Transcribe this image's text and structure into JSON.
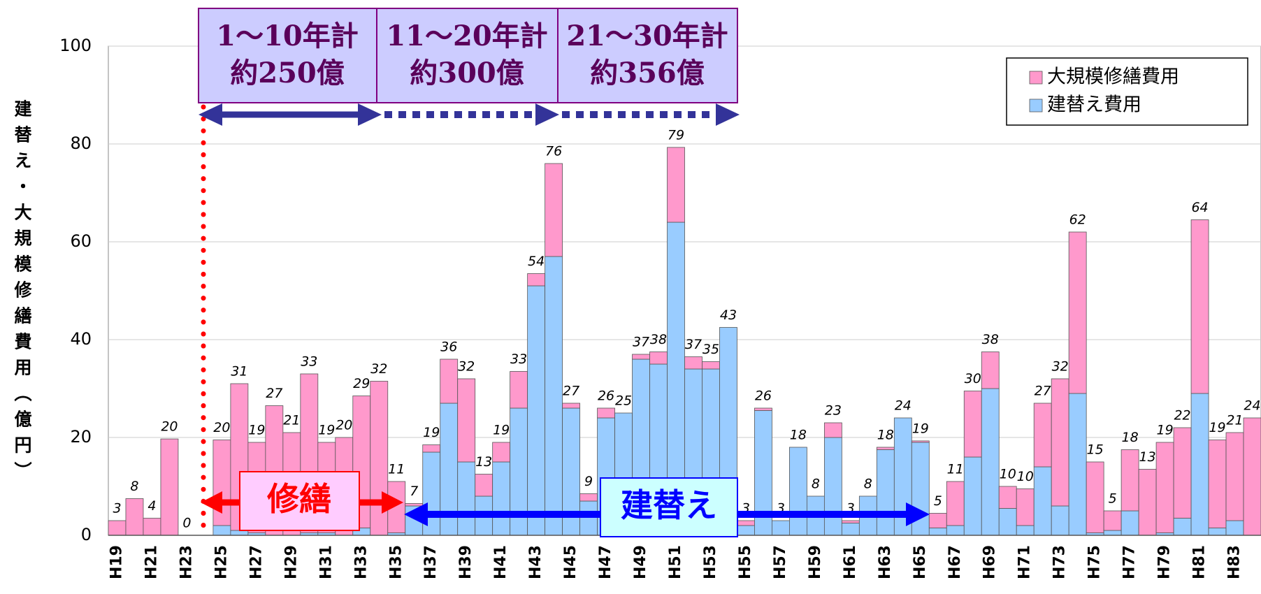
{
  "chart_data": {
    "type": "stacked_bar",
    "y_label": "建替え・大規模修繕費用（億円）",
    "categories": [
      "H19",
      null,
      "H21",
      null,
      "H23",
      null,
      "H25",
      null,
      "H27",
      null,
      "H29",
      null,
      "H31",
      null,
      "H33",
      null,
      "H35",
      null,
      "H37",
      null,
      "H39",
      null,
      "H41",
      null,
      "H43",
      null,
      "H45",
      null,
      "H47",
      null,
      "H49",
      null,
      "H51",
      null,
      "H53",
      null,
      "H55",
      null,
      "H57",
      null,
      "H59",
      null,
      "H61",
      null,
      "H63",
      null,
      "H65",
      null,
      "H67",
      null,
      "H69",
      null,
      "H71",
      null,
      "H73",
      null,
      "H75",
      null,
      "H77",
      null,
      "H79",
      null,
      "H81",
      null,
      "H83",
      null
    ],
    "series": [
      {
        "name": "建替え費用",
        "color": "#99ccff",
        "values": [
          0,
          0,
          0,
          0,
          0,
          0,
          2,
          1,
          0.5,
          0,
          0,
          0.5,
          0.5,
          0,
          1.5,
          0,
          0.5,
          6,
          17,
          27,
          15,
          8,
          15,
          26,
          51,
          57,
          26,
          7,
          24,
          25,
          36,
          35,
          64,
          34,
          34,
          42.5,
          2,
          25.5,
          3,
          18,
          8,
          20,
          2.5,
          8,
          17.5,
          24,
          19,
          1.5,
          2,
          16,
          30,
          5.5,
          2,
          14,
          6,
          29,
          0.5,
          1,
          5,
          0,
          0.5,
          3.5,
          29,
          1.5,
          3,
          0
        ]
      },
      {
        "name": "大規模修繕費用",
        "color": "#ff99cc",
        "values": [
          3,
          7.5,
          3.5,
          19.7,
          0,
          0,
          17.5,
          30,
          18.5,
          26.5,
          21,
          32.5,
          18.5,
          20,
          27,
          31.5,
          10.5,
          0.5,
          1.5,
          9,
          17,
          4.5,
          4,
          7.5,
          2.5,
          19,
          1,
          1.5,
          2,
          0,
          1,
          2.5,
          15.3,
          2.5,
          1.5,
          0,
          1,
          0.5,
          0,
          0,
          0,
          3,
          0.5,
          0,
          0.5,
          0,
          0.3,
          3,
          9,
          13.5,
          7.5,
          4.5,
          7.5,
          13,
          26,
          33,
          14.5,
          4,
          12.5,
          13.5,
          18.5,
          18.5,
          35.5,
          18,
          18,
          24
        ]
      }
    ],
    "totals": [
      3,
      8,
      4,
      20,
      0,
      null,
      20,
      31,
      19,
      27,
      21,
      33,
      19,
      20,
      29,
      32,
      11,
      7,
      19,
      36,
      32,
      13,
      19,
      33,
      54,
      76,
      27,
      9,
      26,
      25,
      37,
      38,
      79,
      37,
      35,
      43,
      3,
      26,
      3,
      18,
      8,
      23,
      3,
      8,
      18,
      24,
      19,
      5,
      11,
      30,
      38,
      10,
      10,
      27,
      32,
      62,
      15,
      5,
      18,
      13,
      19,
      22,
      64,
      19,
      21,
      24
    ],
    "ylim": [
      0,
      100
    ],
    "yticks": [
      0,
      20,
      40,
      60,
      80,
      100
    ],
    "grid": true,
    "legend": "upper right",
    "annotations": {
      "periods": [
        {
          "range": "1〜10年計",
          "amount": "約250億"
        },
        {
          "range": "11〜20年計",
          "amount": "約300億"
        },
        {
          "range": "21〜30年計",
          "amount": "約356億"
        }
      ],
      "repair": "修繕",
      "rebuild": "建替え"
    }
  }
}
